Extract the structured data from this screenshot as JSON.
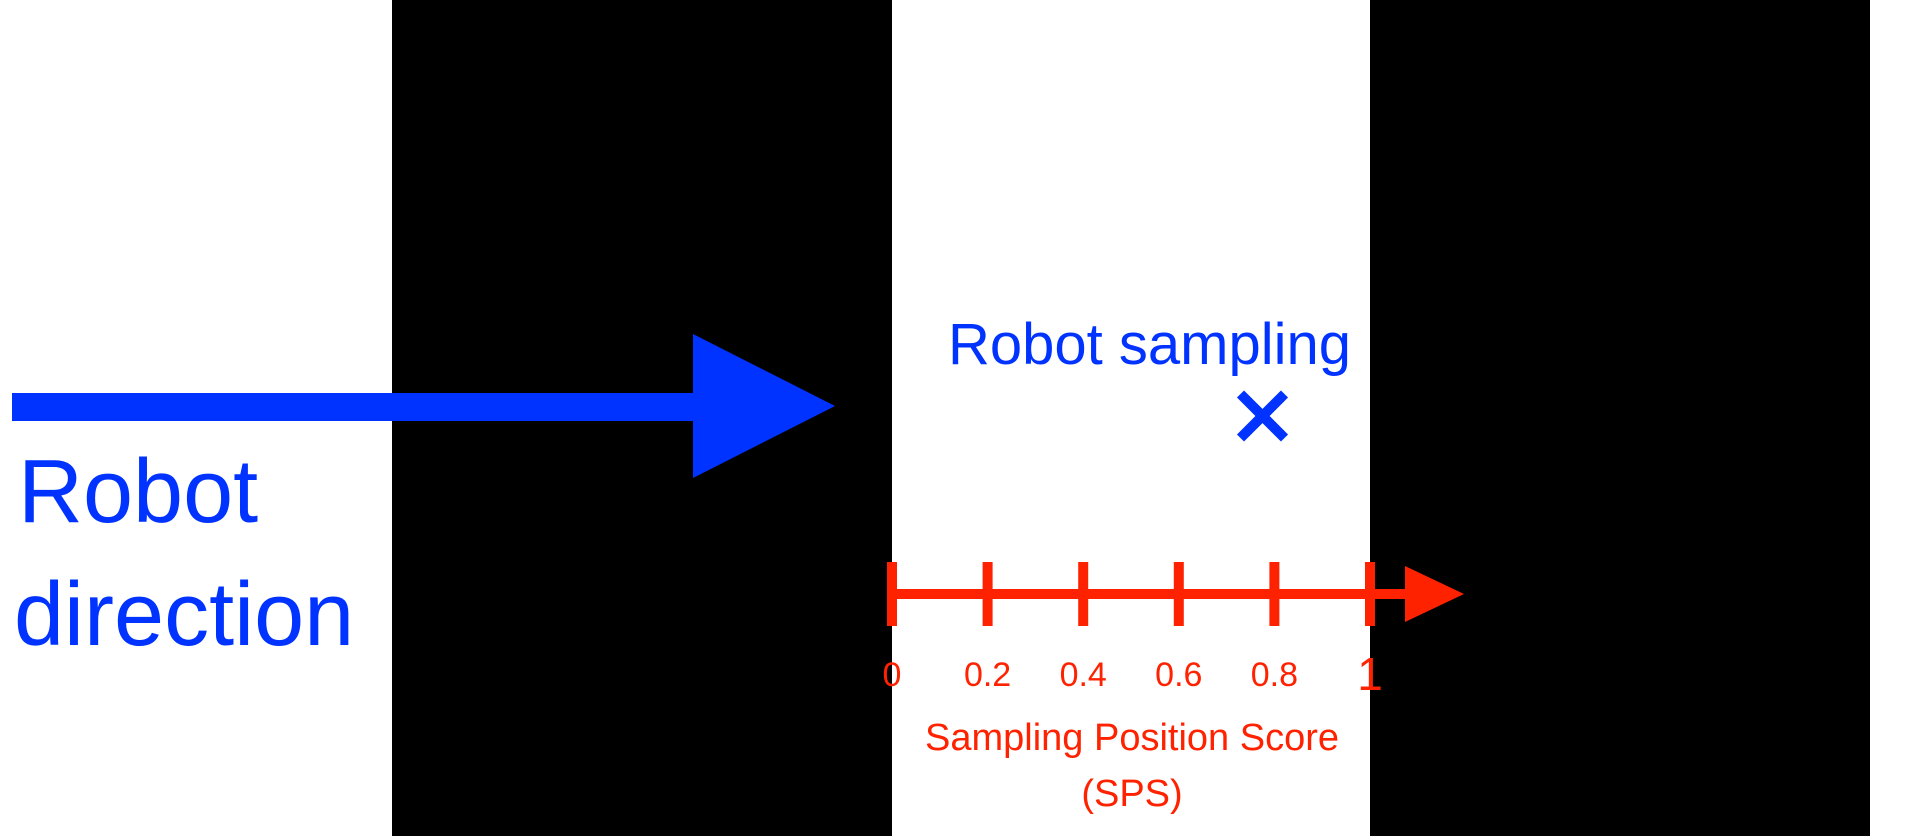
{
  "colors": {
    "background": "#ffffff",
    "stripe": "#000000",
    "robot_blue": "#0033ff",
    "scale_red": "#ff2200"
  },
  "robot_direction": {
    "label_line1": "Robot",
    "label_line2": "direction"
  },
  "sampling": {
    "label": "Robot sampling",
    "marker_icon": "x-cross-icon",
    "sps_value": 0.75
  },
  "scale": {
    "tick_values": [
      0,
      0.2,
      0.4,
      0.6,
      0.8,
      1
    ],
    "tick_labels": [
      "0",
      "0.2",
      "0.4",
      "0.6",
      "0.8",
      "1"
    ],
    "title_line1": "Sampling Position Score",
    "title_line2": "(SPS)"
  }
}
